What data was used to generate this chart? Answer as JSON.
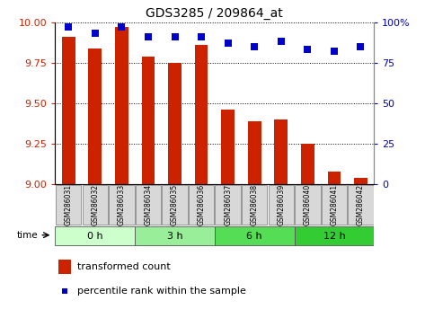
{
  "title": "GDS3285 / 209864_at",
  "samples": [
    "GSM286031",
    "GSM286032",
    "GSM286033",
    "GSM286034",
    "GSM286035",
    "GSM286036",
    "GSM286037",
    "GSM286038",
    "GSM286039",
    "GSM286040",
    "GSM286041",
    "GSM286042"
  ],
  "bar_values": [
    9.91,
    9.84,
    9.97,
    9.79,
    9.75,
    9.86,
    9.46,
    9.39,
    9.4,
    9.25,
    9.08,
    9.04
  ],
  "percentile_values": [
    97,
    93,
    97,
    91,
    91,
    91,
    87,
    85,
    88,
    83,
    82,
    85
  ],
  "bar_color": "#cc2200",
  "percentile_color": "#0000cc",
  "ylim_left": [
    9.0,
    10.0
  ],
  "ylim_right": [
    0,
    100
  ],
  "yticks_left": [
    9.0,
    9.25,
    9.5,
    9.75,
    10.0
  ],
  "yticks_right": [
    0,
    25,
    50,
    75,
    100
  ],
  "groups": [
    {
      "label": "0 h",
      "indices": [
        0,
        1,
        2
      ],
      "color": "#ccffcc"
    },
    {
      "label": "3 h",
      "indices": [
        3,
        4,
        5
      ],
      "color": "#99ee99"
    },
    {
      "label": "6 h",
      "indices": [
        6,
        7,
        8
      ],
      "color": "#55dd55"
    },
    {
      "label": "12 h",
      "indices": [
        9,
        10,
        11
      ],
      "color": "#33cc33"
    }
  ],
  "xlabel_time": "time",
  "legend_bar_label": "transformed count",
  "legend_pct_label": "percentile rank within the sample",
  "background_color": "#ffffff",
  "plot_bg_color": "#ffffff",
  "grid_color": "#000000",
  "tick_label_color_left": "#cc2200",
  "tick_label_color_right": "#0000cc",
  "sample_box_color": "#d8d8d8",
  "sample_box_edge": "#888888"
}
